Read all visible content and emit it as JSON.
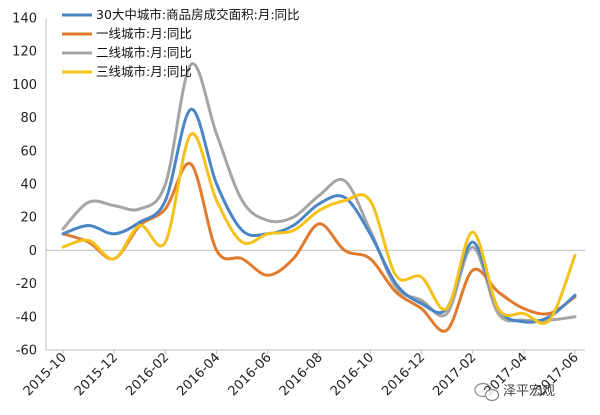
{
  "chart_data": {
    "type": "line",
    "grid": false,
    "legend_position": "top-left",
    "ylim": [
      -60,
      140
    ],
    "yticks": [
      -60,
      -40,
      -20,
      0,
      20,
      40,
      60,
      80,
      100,
      120,
      140
    ],
    "x_tick_labels": [
      "2015-10",
      "2015-12",
      "2016-02",
      "2016-04",
      "2016-06",
      "2016-08",
      "2016-10",
      "2016-12",
      "2017-02",
      "2017-04",
      "2017-06"
    ],
    "x": [
      "2015-10",
      "2015-11",
      "2015-12",
      "2016-01",
      "2016-02",
      "2016-03",
      "2016-04",
      "2016-05",
      "2016-06",
      "2016-07",
      "2016-08",
      "2016-09",
      "2016-10",
      "2016-11",
      "2016-12",
      "2017-01",
      "2017-02",
      "2017-03",
      "2017-04",
      "2017-05",
      "2017-06"
    ],
    "series": [
      {
        "name": "30大中城市:商品房成交面积:月:同比",
        "color": "#4a86c5",
        "values": [
          10,
          15,
          10,
          17,
          30,
          85,
          40,
          12,
          10,
          15,
          28,
          32,
          10,
          -20,
          -32,
          -35,
          5,
          -35,
          -43,
          -40,
          -27
        ]
      },
      {
        "name": "一线城市:月:同比",
        "color": "#e07b2f",
        "values": [
          10,
          5,
          -5,
          15,
          25,
          52,
          0,
          -5,
          -15,
          -5,
          16,
          0,
          -5,
          -25,
          -35,
          -48,
          -12,
          -25,
          -35,
          -38,
          -28
        ]
      },
      {
        "name": "二线城市:月:同比",
        "color": "#a5a5a5",
        "values": [
          13,
          29,
          27,
          25,
          40,
          112,
          70,
          30,
          18,
          20,
          33,
          42,
          12,
          -22,
          -30,
          -38,
          2,
          -38,
          -42,
          -42,
          -40
        ]
      },
      {
        "name": "三线城市:月:同比",
        "color": "#f5c21b",
        "values": [
          2,
          6,
          -5,
          15,
          5,
          70,
          30,
          5,
          10,
          12,
          24,
          30,
          30,
          -15,
          -16,
          -35,
          11,
          -35,
          -38,
          -42,
          -3
        ]
      }
    ]
  },
  "watermark": "泽平宏观"
}
